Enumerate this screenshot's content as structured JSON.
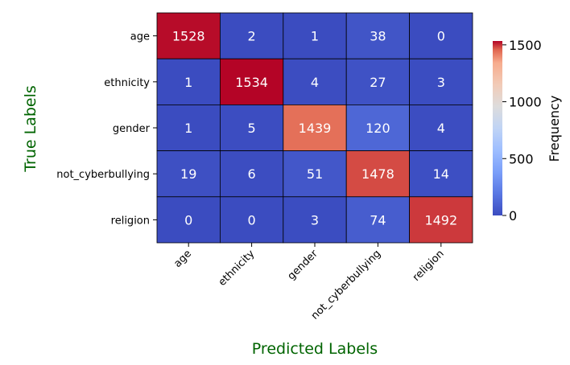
{
  "chart_data": {
    "type": "heatmap",
    "title": "",
    "xlabel": "Predicted Labels",
    "ylabel": "True Labels",
    "x_categories": [
      "age",
      "ethnicity",
      "gender",
      "not_cyberbullying",
      "religion"
    ],
    "y_categories": [
      "age",
      "ethnicity",
      "gender",
      "not_cyberbullying",
      "religion"
    ],
    "matrix": [
      [
        1528,
        2,
        1,
        38,
        0
      ],
      [
        1,
        1534,
        4,
        27,
        3
      ],
      [
        1,
        5,
        1439,
        120,
        4
      ],
      [
        19,
        6,
        51,
        1478,
        14
      ],
      [
        0,
        0,
        3,
        74,
        1492
      ]
    ],
    "colormap": "coolwarm",
    "colorbar": {
      "label": "Frequency",
      "ticks": [
        0,
        500,
        1000,
        1500
      ],
      "tick_labels": [
        "0",
        "500",
        "1000",
        "1500"
      ],
      "range": [
        0,
        1534
      ]
    },
    "axis_label_color": "#006400",
    "cell_text_color": "#ffffff",
    "grid_line_color": "#000000"
  }
}
